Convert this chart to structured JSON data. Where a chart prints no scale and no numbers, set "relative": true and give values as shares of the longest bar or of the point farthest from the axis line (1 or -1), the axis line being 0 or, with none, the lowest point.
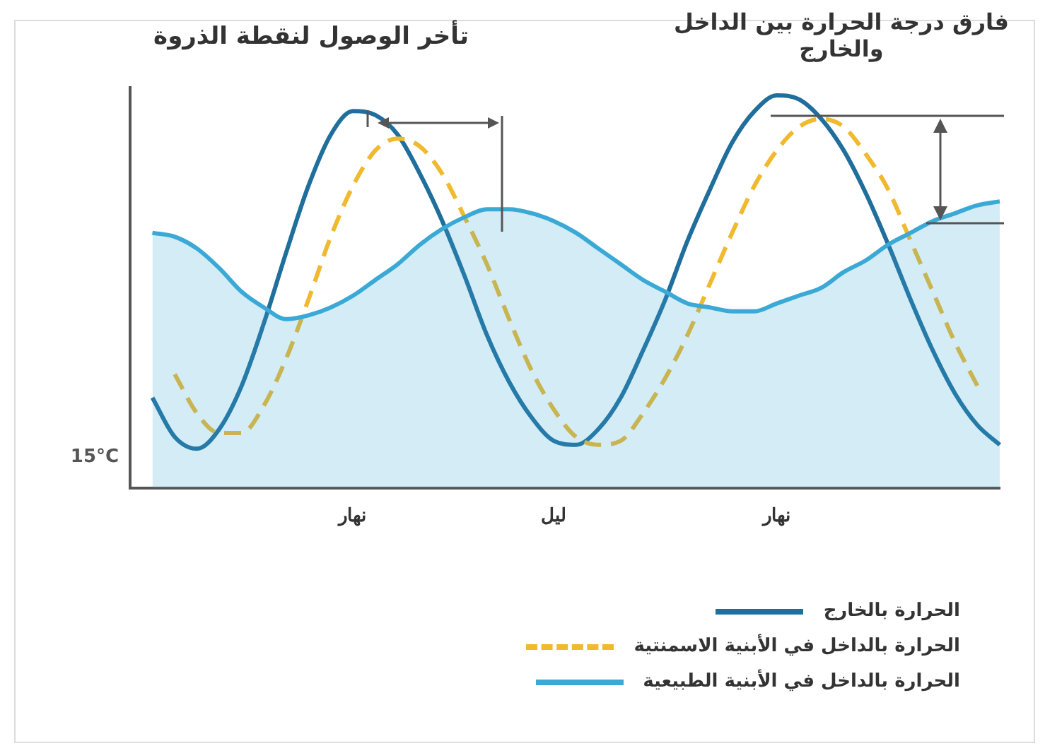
{
  "chart_data": {
    "type": "line",
    "relative": true,
    "grid": false,
    "legend": "bottom right",
    "marker": "none",
    "annotations": [
      "تأخر الوصول لنقطة الذروة",
      "فارق درجة الحرارة بين الداخل والخارج",
      "15°C"
    ],
    "categories": [
      null,
      null,
      null,
      null,
      null,
      null,
      null,
      null,
      null,
      null,
      "نهار",
      null,
      null,
      null,
      null,
      null,
      null,
      null,
      null,
      "ليل",
      null,
      null,
      null,
      null,
      null,
      null,
      null,
      null,
      null,
      "نهار",
      null,
      null,
      null,
      null,
      null,
      null,
      null,
      null,
      null,
      null
    ],
    "series": [
      {
        "name": "الحرارة بالخارج",
        "color": "#1f6e9c",
        "line_style": "solid",
        "values": [
          null,
          0.23,
          0.13,
          0.1,
          0.15,
          0.26,
          0.42,
          0.6,
          0.77,
          0.9,
          0.96,
          0.95,
          0.9,
          0.8,
          0.68,
          0.54,
          0.39,
          0.27,
          0.18,
          0.12,
          0.11,
          0.15,
          0.23,
          0.35,
          0.48,
          0.63,
          0.76,
          0.88,
          0.96,
          1.0,
          0.99,
          0.94,
          0.86,
          0.75,
          0.62,
          0.48,
          0.35,
          0.24,
          0.16,
          0.11
        ]
      },
      {
        "name": "الحرارة بالداخل في الأبنية الاسمنتية",
        "color": "#f0b92e",
        "line_style": "dashed",
        "values": [
          null,
          null,
          0.29,
          0.19,
          0.14,
          0.14,
          0.21,
          0.33,
          0.48,
          0.64,
          0.77,
          0.86,
          0.89,
          0.87,
          0.8,
          0.69,
          0.57,
          0.43,
          0.3,
          0.2,
          0.13,
          0.11,
          0.12,
          0.19,
          0.28,
          0.39,
          0.52,
          0.65,
          0.77,
          0.86,
          0.92,
          0.94,
          0.92,
          0.85,
          0.76,
          0.63,
          0.5,
          0.37,
          0.26,
          null
        ]
      },
      {
        "name": "الحرارة بالداخل في الأبنية الطبيعية",
        "color": "#3ba9d6",
        "type": "area",
        "line_style": "solid",
        "values": [
          null,
          0.65,
          0.64,
          0.61,
          0.56,
          0.5,
          0.46,
          0.43,
          0.44,
          0.46,
          0.49,
          0.53,
          0.57,
          0.62,
          0.66,
          0.69,
          0.71,
          0.71,
          0.7,
          0.68,
          0.65,
          0.61,
          0.57,
          0.53,
          0.5,
          0.47,
          0.46,
          0.45,
          0.45,
          0.47,
          0.49,
          0.51,
          0.55,
          0.58,
          0.62,
          0.65,
          0.68,
          0.7,
          0.72,
          0.73
        ]
      }
    ]
  }
}
